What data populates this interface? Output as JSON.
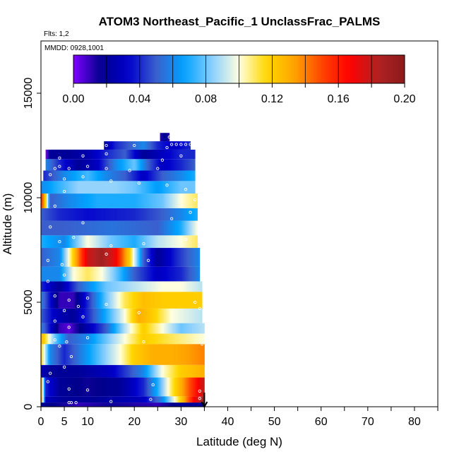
{
  "chart_data": {
    "type": "heatmap",
    "title": "ATOM3 Northeast_Pacific_1 UnclassFrac_PALMS",
    "flights_label": "Flts: 1,2",
    "dates_label": "MMDD: 0928,1001",
    "xlabel": "Latitude (deg N)",
    "ylabel": "Altitude (m)",
    "xlim": [
      0,
      85
    ],
    "ylim": [
      0,
      17500
    ],
    "x_ticks": [
      0,
      5,
      10,
      20,
      30,
      40,
      50,
      60,
      70,
      80
    ],
    "y_ticks": [
      0,
      5000,
      10000,
      15000
    ],
    "y_tick_labels": [
      "0",
      "5000",
      "10000",
      "15000"
    ],
    "colorbar": {
      "range": [
        0,
        0.2
      ],
      "ticks": [
        "0.00",
        "0.04",
        "0.08",
        "0.12",
        "0.16",
        "0.20"
      ],
      "colors": [
        "#7f00ff",
        "#00008b",
        "#0000cd",
        "#3a5fcd",
        "#00a2ff",
        "#87ceff",
        "#ffffe0",
        "#ffd700",
        "#ffa500",
        "#ff4500",
        "#ff0000",
        "#b22222",
        "#8b1a1a"
      ]
    },
    "arrow_marker_latitude": 35,
    "bands": [
      {
        "y0": 0,
        "y1": 200,
        "x0": 0,
        "x1": 35,
        "stops": [
          [
            0,
            0.02
          ],
          [
            8,
            0.01
          ],
          [
            15,
            0.015
          ],
          [
            25,
            0.01
          ],
          [
            30,
            0.02
          ],
          [
            35,
            0.02
          ]
        ]
      },
      {
        "y0": 200,
        "y1": 500,
        "x0": 0,
        "x1": 35,
        "stops": [
          [
            0,
            0.15
          ],
          [
            1,
            0.03
          ],
          [
            5,
            0.02
          ],
          [
            12,
            0.02
          ],
          [
            22,
            0.03
          ],
          [
            26,
            0.06
          ],
          [
            30,
            0.12
          ],
          [
            33,
            0.17
          ],
          [
            35,
            0.19
          ]
        ]
      },
      {
        "y0": 500,
        "y1": 1400,
        "x0": 0,
        "x1": 35,
        "stops": [
          [
            0,
            0.14
          ],
          [
            1,
            0.04
          ],
          [
            4,
            0.02
          ],
          [
            10,
            0.015
          ],
          [
            17,
            0.02
          ],
          [
            22,
            0.04
          ],
          [
            25,
            0.07
          ],
          [
            28,
            0.11
          ],
          [
            31,
            0.14
          ],
          [
            33,
            0.16
          ],
          [
            35,
            0.18
          ]
        ]
      },
      {
        "y0": 1400,
        "y1": 2000,
        "x0": 0,
        "x1": 35,
        "stops": [
          [
            0,
            0.03
          ],
          [
            2,
            0.02
          ],
          [
            8,
            0.02
          ],
          [
            15,
            0.03
          ],
          [
            22,
            0.06
          ],
          [
            26,
            0.1
          ],
          [
            30,
            0.12
          ],
          [
            35,
            0.13
          ]
        ]
      },
      {
        "y0": 2000,
        "y1": 3000,
        "x0": 0,
        "x1": 35,
        "stops": [
          [
            0,
            0.12
          ],
          [
            2,
            0.06
          ],
          [
            5,
            0.04
          ],
          [
            9,
            0.06
          ],
          [
            13,
            0.08
          ],
          [
            17,
            0.1
          ],
          [
            20,
            0.12
          ],
          [
            24,
            0.13
          ],
          [
            28,
            0.13
          ],
          [
            32,
            0.135
          ],
          [
            35,
            0.14
          ]
        ]
      },
      {
        "y0": 3000,
        "y1": 3500,
        "x0": 0,
        "x1": 35,
        "stops": [
          [
            0,
            0.13
          ],
          [
            3,
            0.08
          ],
          [
            6,
            0.05
          ],
          [
            10,
            0.06
          ],
          [
            16,
            0.09
          ],
          [
            22,
            0.12
          ],
          [
            28,
            0.11
          ],
          [
            35,
            0.1
          ]
        ]
      },
      {
        "y0": 3500,
        "y1": 4000,
        "x0": 0,
        "x1": 35,
        "stops": [
          [
            0,
            0.06
          ],
          [
            4,
            0.01
          ],
          [
            6,
            0.005
          ],
          [
            9,
            0.02
          ],
          [
            14,
            0.05
          ],
          [
            18,
            0.09
          ],
          [
            22,
            0.12
          ],
          [
            26,
            0.1
          ],
          [
            30,
            0.08
          ],
          [
            35,
            0.09
          ]
        ]
      },
      {
        "y0": 4000,
        "y1": 4700,
        "x0": 0,
        "x1": 34.5,
        "stops": [
          [
            0,
            0.05
          ],
          [
            3,
            0.03
          ],
          [
            7,
            0.02
          ],
          [
            10,
            0.04
          ],
          [
            14,
            0.07
          ],
          [
            18,
            0.1
          ],
          [
            21,
            0.13
          ],
          [
            24,
            0.12
          ],
          [
            28,
            0.1
          ],
          [
            34.5,
            0.09
          ]
        ]
      },
      {
        "y0": 4700,
        "y1": 5500,
        "x0": 0,
        "x1": 34.5,
        "stops": [
          [
            0,
            0.06
          ],
          [
            4,
            0.01
          ],
          [
            7,
            0.01
          ],
          [
            10,
            0.04
          ],
          [
            14,
            0.08
          ],
          [
            18,
            0.11
          ],
          [
            22,
            0.125
          ],
          [
            26,
            0.12
          ],
          [
            30,
            0.12
          ],
          [
            34.5,
            0.12
          ]
        ]
      },
      {
        "y0": 5500,
        "y1": 6000,
        "x0": 0,
        "x1": 34.5,
        "stops": [
          [
            0,
            0.04
          ],
          [
            4,
            0.02
          ],
          [
            8,
            0.05
          ],
          [
            14,
            0.08
          ],
          [
            20,
            0.09
          ],
          [
            26,
            0.1
          ],
          [
            30,
            0.1
          ],
          [
            34.5,
            0.09
          ]
        ]
      },
      {
        "y0": 6000,
        "y1": 6700,
        "x0": 0,
        "x1": 34,
        "stops": [
          [
            0,
            0.06
          ],
          [
            4,
            0.06
          ],
          [
            7,
            0.1
          ],
          [
            10,
            0.11
          ],
          [
            13,
            0.1
          ],
          [
            16,
            0.08
          ],
          [
            20,
            0.05
          ],
          [
            25,
            0.03
          ],
          [
            30,
            0.04
          ],
          [
            34,
            0.06
          ]
        ]
      },
      {
        "y0": 6700,
        "y1": 7600,
        "x0": 0,
        "x1": 34,
        "stops": [
          [
            0,
            0.05
          ],
          [
            4,
            0.06
          ],
          [
            6,
            0.1
          ],
          [
            8,
            0.14
          ],
          [
            10,
            0.175
          ],
          [
            13,
            0.19
          ],
          [
            16,
            0.17
          ],
          [
            19,
            0.12
          ],
          [
            22,
            0.05
          ],
          [
            25,
            0.02
          ],
          [
            29,
            0.04
          ],
          [
            34,
            0.06
          ]
        ]
      },
      {
        "y0": 7600,
        "y1": 8200,
        "x0": 0,
        "x1": 33.5,
        "stops": [
          [
            0,
            0.07
          ],
          [
            5,
            0.06
          ],
          [
            10,
            0.1
          ],
          [
            15,
            0.08
          ],
          [
            20,
            0.07
          ],
          [
            25,
            0.09
          ],
          [
            30,
            0.1
          ],
          [
            33.5,
            0.11
          ]
        ]
      },
      {
        "y0": 8200,
        "y1": 8900,
        "x0": 0,
        "x1": 33.5,
        "stops": [
          [
            0,
            0.05
          ],
          [
            5,
            0.05
          ],
          [
            15,
            0.055
          ],
          [
            25,
            0.05
          ],
          [
            30,
            0.07
          ],
          [
            33.5,
            0.1
          ]
        ]
      },
      {
        "y0": 8900,
        "y1": 9500,
        "x0": 0,
        "x1": 33.5,
        "stops": [
          [
            0,
            0.05
          ],
          [
            4,
            0.04
          ],
          [
            10,
            0.035
          ],
          [
            20,
            0.04
          ],
          [
            26,
            0.05
          ],
          [
            30,
            0.06
          ],
          [
            33.5,
            0.07
          ]
        ]
      },
      {
        "y0": 9500,
        "y1": 10200,
        "x0": 0,
        "x1": 33.5,
        "stops": [
          [
            0,
            0.16
          ],
          [
            1,
            0.12
          ],
          [
            2,
            0.05
          ],
          [
            6,
            0.06
          ],
          [
            12,
            0.07
          ],
          [
            20,
            0.07
          ],
          [
            26,
            0.08
          ],
          [
            30,
            0.1
          ],
          [
            33.5,
            0.11
          ]
        ]
      },
      {
        "y0": 10200,
        "y1": 10800,
        "x0": 0,
        "x1": 33,
        "stops": [
          [
            0,
            0.06
          ],
          [
            3,
            0.07
          ],
          [
            8,
            0.085
          ],
          [
            16,
            0.085
          ],
          [
            20,
            0.08
          ],
          [
            25,
            0.065
          ],
          [
            30,
            0.08
          ],
          [
            33,
            0.08
          ]
        ]
      },
      {
        "y0": 10800,
        "y1": 11300,
        "x0": 0.5,
        "x1": 33,
        "stops": [
          [
            0.5,
            0.04
          ],
          [
            5,
            0.06
          ],
          [
            10,
            0.075
          ],
          [
            14,
            0.06
          ],
          [
            18,
            0.05
          ],
          [
            22,
            0.03
          ],
          [
            26,
            0.05
          ],
          [
            30,
            0.06
          ],
          [
            33,
            0.07
          ]
        ]
      },
      {
        "y0": 11300,
        "y1": 11850,
        "x0": 1,
        "x1": 33,
        "stops": [
          [
            1,
            0.06
          ],
          [
            4,
            0.04
          ],
          [
            8,
            0.02
          ],
          [
            12,
            0.03
          ],
          [
            16,
            0.06
          ],
          [
            20,
            0.08
          ],
          [
            23,
            0.05
          ],
          [
            26,
            0.03
          ],
          [
            30,
            0.04
          ],
          [
            33,
            0.05
          ]
        ]
      },
      {
        "y0": 11850,
        "y1": 12300,
        "x0": 1,
        "x1": 33,
        "stops": [
          [
            1,
            0.0
          ],
          [
            2,
            0.02
          ],
          [
            6,
            0.02
          ],
          [
            10,
            0.025
          ],
          [
            14,
            0.04
          ],
          [
            18,
            0.05
          ],
          [
            22,
            0.02
          ],
          [
            26,
            0.03
          ],
          [
            30,
            0.04
          ],
          [
            33,
            0.04
          ]
        ]
      },
      {
        "y0": 12300,
        "y1": 12700,
        "x0": 13.5,
        "x1": 32,
        "stops": [
          [
            13.5,
            0.02
          ],
          [
            16,
            0.04
          ],
          [
            19,
            0.05
          ],
          [
            22,
            0.06
          ],
          [
            25,
            0.04
          ],
          [
            28,
            0.03
          ],
          [
            32,
            0.04
          ]
        ]
      },
      {
        "y0": 12700,
        "y1": 13100,
        "x0": 25.5,
        "x1": 27.5,
        "stops": [
          [
            25.5,
            0.01
          ],
          [
            26.5,
            0.02
          ],
          [
            27.5,
            0.01
          ]
        ]
      }
    ],
    "samples": [
      [
        6,
        200
      ],
      [
        6.5,
        200
      ],
      [
        7.5,
        200
      ],
      [
        15,
        250
      ],
      [
        23.5,
        350
      ],
      [
        34,
        400
      ],
      [
        1.5,
        1200
      ],
      [
        6,
        850
      ],
      [
        10,
        800
      ],
      [
        24,
        1050
      ],
      [
        34,
        750
      ],
      [
        2,
        1600
      ],
      [
        5,
        1900
      ],
      [
        6.5,
        2400
      ],
      [
        4,
        2900
      ],
      [
        3,
        3200
      ],
      [
        5.5,
        3100
      ],
      [
        10,
        3300
      ],
      [
        22,
        3100
      ],
      [
        34.5,
        3000
      ],
      [
        6,
        3800
      ],
      [
        3,
        4100
      ],
      [
        9,
        4300
      ],
      [
        5,
        4600
      ],
      [
        8,
        4800
      ],
      [
        14,
        4900
      ],
      [
        21,
        4500
      ],
      [
        3,
        5300
      ],
      [
        6,
        5100
      ],
      [
        10,
        5200
      ],
      [
        33,
        5000
      ],
      [
        34,
        4700
      ],
      [
        1.5,
        6000
      ],
      [
        5,
        6300
      ],
      [
        1.5,
        7000
      ],
      [
        4.5,
        6800
      ],
      [
        14,
        7300
      ],
      [
        23,
        7000
      ],
      [
        4,
        7900
      ],
      [
        7,
        8100
      ],
      [
        15,
        7700
      ],
      [
        22,
        7800
      ],
      [
        31,
        8000
      ],
      [
        2,
        8600
      ],
      [
        9,
        8800
      ],
      [
        28,
        9000
      ],
      [
        3,
        9600
      ],
      [
        5,
        10300
      ],
      [
        33,
        9900
      ],
      [
        32,
        9300
      ],
      [
        2,
        11100
      ],
      [
        5,
        10900
      ],
      [
        9,
        11000
      ],
      [
        15,
        10800
      ],
      [
        21,
        10700
      ],
      [
        27,
        10600
      ],
      [
        31,
        10400
      ],
      [
        3,
        11400
      ],
      [
        4,
        11500
      ],
      [
        6,
        11400
      ],
      [
        10,
        11500
      ],
      [
        14,
        11400
      ],
      [
        19,
        11300
      ],
      [
        25,
        11400
      ],
      [
        4,
        11900
      ],
      [
        9,
        12000
      ],
      [
        14,
        12100
      ],
      [
        26,
        11800
      ],
      [
        30,
        12000
      ],
      [
        14,
        12500
      ],
      [
        20,
        12500
      ],
      [
        27,
        12400
      ],
      [
        27.5,
        12900
      ],
      [
        28,
        12550
      ],
      [
        29,
        12550
      ],
      [
        30,
        12550
      ],
      [
        31,
        12550
      ],
      [
        32,
        12550
      ]
    ]
  }
}
